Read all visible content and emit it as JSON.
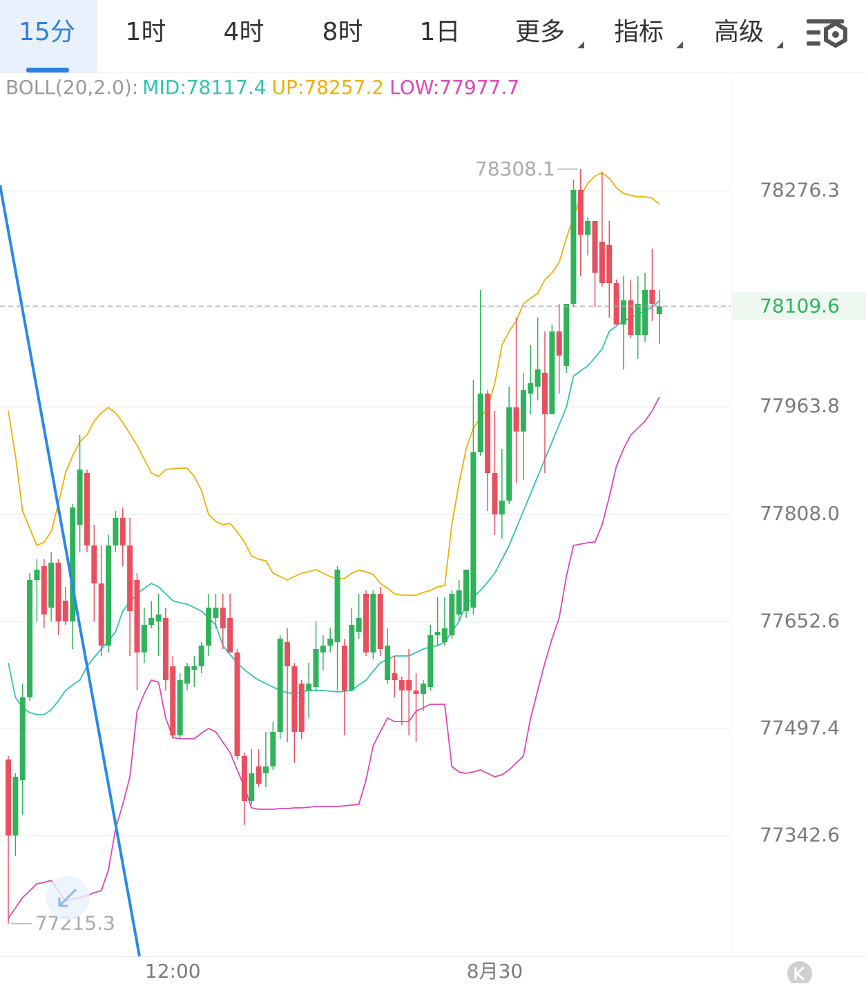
{
  "tabs": [
    {
      "label": "15分",
      "dropdown": false
    },
    {
      "label": "1时",
      "dropdown": false
    },
    {
      "label": "4时",
      "dropdown": false
    },
    {
      "label": "8时",
      "dropdown": false
    },
    {
      "label": "1日",
      "dropdown": false
    },
    {
      "label": "更多",
      "dropdown": true
    },
    {
      "label": "指标",
      "dropdown": true
    },
    {
      "label": "高级",
      "dropdown": true
    }
  ],
  "active_tab": 0,
  "chart_data": {
    "type": "candlestick",
    "title": "BOLL(20,2.0):",
    "up_color": "#2fb35a",
    "down_color": "#e9505f",
    "categories": [
      null,
      null,
      null,
      null,
      null,
      null,
      null,
      null,
      null,
      null,
      null,
      null,
      null,
      null,
      null,
      null,
      null,
      null,
      null,
      null,
      null,
      null,
      null,
      "12:00",
      null,
      null,
      null,
      null,
      null,
      null,
      null,
      null,
      null,
      null,
      null,
      null,
      null,
      null,
      null,
      null,
      null,
      null,
      null,
      null,
      null,
      null,
      null,
      null,
      null,
      null,
      null,
      null,
      null,
      null,
      null,
      null,
      null,
      null,
      null,
      null,
      null,
      null,
      null,
      null,
      null,
      null,
      null,
      null,
      "8月30",
      null,
      null,
      null,
      null,
      null,
      null,
      null,
      null,
      null,
      null,
      null,
      null,
      null,
      null,
      null,
      null,
      null,
      null,
      null,
      null,
      null,
      null,
      null
    ],
    "ohlc": [
      [
        77453,
        77458,
        77215.3,
        77343
      ],
      [
        77343,
        77433,
        77313,
        77428
      ],
      [
        77423,
        77563,
        77373,
        77543
      ],
      [
        77543,
        77723,
        77538,
        77713
      ],
      [
        77713,
        77743,
        77653,
        77728
      ],
      [
        77733,
        77743,
        77643,
        77663
      ],
      [
        77673,
        77753,
        77653,
        77738
      ],
      [
        77738,
        77743,
        77633,
        77653
      ],
      [
        77683,
        77703,
        77648,
        77653
      ],
      [
        77653,
        77823,
        77613,
        77818
      ],
      [
        77793,
        77923,
        77753,
        77873
      ],
      [
        77868,
        77873,
        77753,
        77763
      ],
      [
        77763,
        77793,
        77653,
        77708
      ],
      [
        77708,
        77763,
        77603,
        77618
      ],
      [
        77618,
        77778,
        77608,
        77763
      ],
      [
        77763,
        77813,
        77753,
        77803
      ],
      [
        77803,
        77818,
        77733,
        77763
      ],
      [
        77763,
        77803,
        77603,
        77668
      ],
      [
        77713,
        77723,
        77553,
        77608
      ],
      [
        77608,
        77673,
        77593,
        77648
      ],
      [
        77648,
        77683,
        77643,
        77658
      ],
      [
        77653,
        77693,
        77603,
        77663
      ],
      [
        77658,
        77673,
        77553,
        77568
      ],
      [
        77588,
        77603,
        77483,
        77488
      ],
      [
        77488,
        77578,
        77483,
        77568
      ],
      [
        77563,
        77593,
        77553,
        77588
      ],
      [
        77583,
        77603,
        77558,
        77588
      ],
      [
        77588,
        77623,
        77578,
        77618
      ],
      [
        77618,
        77693,
        77603,
        77673
      ],
      [
        77658,
        77693,
        77643,
        77673
      ],
      [
        77673,
        77693,
        77613,
        77643
      ],
      [
        77658,
        77693,
        77608,
        77608
      ],
      [
        77608,
        77613,
        77453,
        77458
      ],
      [
        77458,
        77463,
        77358,
        77393
      ],
      [
        77393,
        77468,
        77388,
        77433
      ],
      [
        77443,
        77468,
        77413,
        77418
      ],
      [
        77433,
        77493,
        77413,
        77443
      ],
      [
        77443,
        77508,
        77438,
        77493
      ],
      [
        77493,
        77633,
        77483,
        77628
      ],
      [
        77623,
        77643,
        77478,
        77588
      ],
      [
        77588,
        77593,
        77448,
        77493
      ],
      [
        77563,
        77568,
        77483,
        77493
      ],
      [
        77553,
        77593,
        77513,
        77563
      ],
      [
        77558,
        77653,
        77553,
        77613
      ],
      [
        77608,
        77633,
        77583,
        77618
      ],
      [
        77618,
        77643,
        77608,
        77628
      ],
      [
        77623,
        77733,
        77553,
        77728
      ],
      [
        77618,
        77628,
        77488,
        77553
      ],
      [
        77553,
        77673,
        77553,
        77648
      ],
      [
        77638,
        77693,
        77628,
        77658
      ],
      [
        77693,
        77698,
        77603,
        77608
      ],
      [
        77608,
        77698,
        77598,
        77693
      ],
      [
        77693,
        77703,
        77603,
        77613
      ],
      [
        77568,
        77643,
        77563,
        77618
      ],
      [
        77578,
        77603,
        77543,
        77568
      ],
      [
        77568,
        77573,
        77503,
        77553
      ],
      [
        77568,
        77613,
        77488,
        77553
      ],
      [
        77553,
        77578,
        77478,
        77548
      ],
      [
        77548,
        77568,
        77523,
        77563
      ],
      [
        77558,
        77648,
        77553,
        77633
      ],
      [
        77633,
        77688,
        77618,
        77638
      ],
      [
        77623,
        77688,
        77618,
        77643
      ],
      [
        77633,
        77698,
        77628,
        77693
      ],
      [
        77663,
        77713,
        77653,
        77698
      ],
      [
        77668,
        77728,
        77658,
        77728
      ],
      [
        77673,
        78003,
        77663,
        77898
      ],
      [
        77898,
        78133,
        77893,
        77983
      ],
      [
        77983,
        77988,
        77813,
        77868
      ],
      [
        77868,
        77958,
        77778,
        77808
      ],
      [
        77808,
        77903,
        77773,
        77828
      ],
      [
        77828,
        77993,
        77823,
        77963
      ],
      [
        77963,
        78093,
        77853,
        77928
      ],
      [
        77928,
        78013,
        77858,
        77988
      ],
      [
        77983,
        78053,
        77953,
        77998
      ],
      [
        77993,
        78093,
        77973,
        78018
      ],
      [
        78013,
        78073,
        77868,
        77953
      ],
      [
        77953,
        78083,
        77953,
        78073
      ],
      [
        78073,
        78113,
        77983,
        78038
      ],
      [
        78023,
        78113,
        78013,
        78113
      ],
      [
        78113,
        78293,
        78108,
        78278
      ],
      [
        78278,
        78308.1,
        78153,
        78213
      ],
      [
        78213,
        78238,
        78183,
        78233
      ],
      [
        78233,
        78233,
        78108,
        78158
      ],
      [
        78203,
        78303,
        78138,
        78143
      ],
      [
        78198,
        78233,
        78093,
        78143
      ],
      [
        78143,
        78148,
        78083,
        78083
      ],
      [
        78083,
        78153,
        78018,
        78118
      ],
      [
        78118,
        78148,
        78063,
        78068
      ],
      [
        78068,
        78153,
        78033,
        78113
      ],
      [
        78068,
        78158,
        78058,
        78133
      ],
      [
        78133,
        78193,
        78088,
        78113
      ],
      [
        78098,
        78133,
        78055,
        78109.6
      ]
    ],
    "series": [
      {
        "name": "MID:",
        "color": "#2ec4b0",
        "values": [
          77593,
          77543,
          77528,
          77521,
          77518,
          77518,
          77525,
          77538,
          77553,
          77561,
          77568,
          77588,
          77601,
          77613,
          77625,
          77638,
          77668,
          77681,
          77693,
          77701,
          77708,
          77703,
          77693,
          77683,
          77680,
          77678,
          77673,
          77668,
          77658,
          77648,
          77618,
          77605,
          77593,
          77583,
          77575,
          77568,
          77563,
          77558,
          77553,
          77550,
          77548,
          77551,
          77553,
          77553,
          77553,
          77552,
          77551,
          77552,
          77553,
          77561,
          77568,
          77581,
          77593,
          77598,
          77603,
          77603,
          77603,
          77608,
          77613,
          77616,
          77618,
          77623,
          77638,
          77653,
          77678,
          77688,
          77698,
          77710,
          77723,
          77743,
          77763,
          77788,
          77813,
          77838,
          77863,
          77888,
          77913,
          77938,
          77963,
          78008,
          78016,
          78023,
          78035,
          78048,
          78073,
          78081,
          78088,
          78093,
          78098,
          78103,
          78108,
          78117.4
        ]
      },
      {
        "name": "UP:",
        "color": "#f0b000",
        "values": [
          77958,
          77893,
          77813,
          77788,
          77763,
          77768,
          77783,
          77823,
          77868,
          77893,
          77913,
          77923,
          77943,
          77955,
          77963,
          77955,
          77941,
          77925,
          77908,
          77888,
          77868,
          77863,
          77873,
          77874,
          77875,
          77875,
          77863,
          77843,
          77808,
          77798,
          77793,
          77795,
          77783,
          77768,
          77748,
          77743,
          77741,
          77723,
          77718,
          77713,
          77718,
          77723,
          77725,
          77728,
          77723,
          77718,
          77715,
          77715,
          77723,
          77727,
          77725,
          77721,
          77708,
          77701,
          77693,
          77691,
          77691,
          77691,
          77695,
          77698,
          77703,
          77705,
          77793,
          77853,
          77903,
          77933,
          77948,
          77963,
          77998,
          78053,
          78073,
          78088,
          78113,
          78121,
          78128,
          78148,
          78158,
          78173,
          78208,
          78238,
          78268,
          78288,
          78298,
          78303,
          78295,
          78281,
          78273,
          78270,
          78268,
          78268,
          78266,
          78257.2
        ]
      },
      {
        "name": "LOW:",
        "color": "#dd45b8",
        "values": [
          77223,
          77238,
          77253,
          77263,
          77273,
          77275,
          77278,
          77263,
          77248,
          77251,
          77253,
          77256,
          77260,
          77263,
          77293,
          77353,
          77388,
          77428,
          77523,
          77548,
          77568,
          77565,
          77513,
          77485,
          77483,
          77483,
          77483,
          77491,
          77498,
          77493,
          77478,
          77463,
          77438,
          77413,
          77383,
          77381,
          77381,
          77381,
          77382,
          77382,
          77383,
          77383,
          77384,
          77385,
          77385,
          77385,
          77385,
          77386,
          77387,
          77388,
          77423,
          77473,
          77493,
          77513,
          77508,
          77508,
          77508,
          77523,
          77528,
          77533,
          77533,
          77533,
          77443,
          77435,
          77433,
          77435,
          77438,
          77433,
          77428,
          77431,
          77438,
          77448,
          77458,
          77513,
          77553,
          77593,
          77628,
          77658,
          77718,
          77763,
          77765,
          77767,
          77768,
          77793,
          77833,
          77878,
          77903,
          77923,
          77933,
          77943,
          77958,
          77977.7
        ]
      }
    ],
    "ylim": [
      77168,
      78448
    ],
    "yticks": [
      78276.3,
      77963.8,
      {
        "value": 77808,
        "label": "77808.0"
      },
      77652.6,
      77497.4,
      77342.6
    ],
    "grid": true
  }
}
